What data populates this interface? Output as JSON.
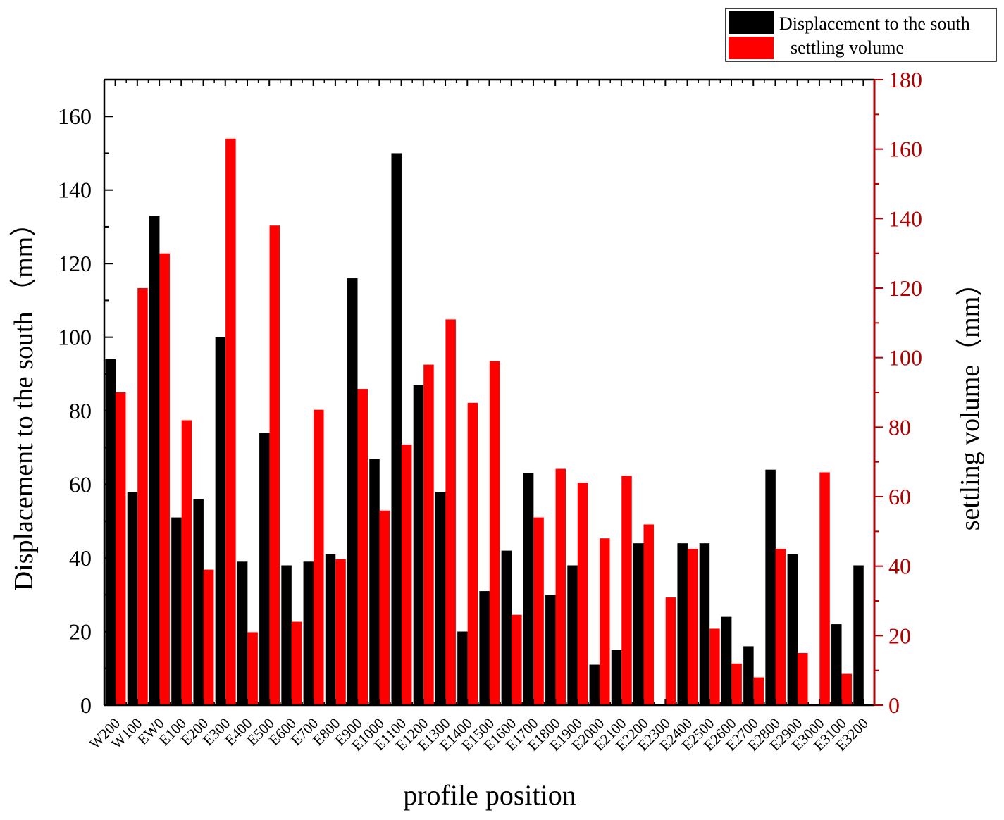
{
  "chart_data": {
    "type": "bar",
    "title": "",
    "xlabel": "profile position",
    "ylabel": "Displacement to the south （mm）",
    "ylabel_right": "settling volume（mm）",
    "ylim": [
      0,
      170
    ],
    "ylim_right": [
      0,
      180
    ],
    "yticks": [
      0,
      20,
      40,
      60,
      80,
      100,
      120,
      140,
      160
    ],
    "yticks_right": [
      0,
      20,
      40,
      60,
      80,
      100,
      120,
      140,
      160,
      180
    ],
    "legend_position": "top-right",
    "grid": false,
    "categories": [
      "W200",
      "W100",
      "EW0",
      "E100",
      "E200",
      "E300",
      "E400",
      "E500",
      "E600",
      "E700",
      "E800",
      "E900",
      "E1000",
      "E1100",
      "E1200",
      "E1300",
      "E1400",
      "E1500",
      "E1600",
      "E1700",
      "E1800",
      "E1900",
      "E2000",
      "E2100",
      "E2200",
      "E2300",
      "E2400",
      "E2500",
      "E2600",
      "E2700",
      "E2800",
      "E2900",
      "E3000",
      "E3100",
      "E3200"
    ],
    "series": [
      {
        "name": "Displacement to the south",
        "axis": "left",
        "color": "#000000",
        "values": [
          94,
          58,
          133,
          51,
          56,
          100,
          39,
          74,
          38,
          39,
          41,
          116,
          67,
          150,
          87,
          58,
          20,
          31,
          42,
          63,
          30,
          38,
          11,
          15,
          44,
          0,
          44,
          44,
          24,
          16,
          64,
          41,
          0,
          22,
          38
        ]
      },
      {
        "name": "settling volume",
        "axis": "right",
        "color": "#ff0000",
        "values": [
          90,
          120,
          130,
          82,
          39,
          163,
          21,
          138,
          24,
          85,
          42,
          91,
          56,
          75,
          98,
          111,
          87,
          99,
          26,
          54,
          68,
          64,
          48,
          66,
          52,
          31,
          45,
          22,
          12,
          8,
          45,
          15,
          67,
          9,
          0
        ]
      }
    ]
  }
}
